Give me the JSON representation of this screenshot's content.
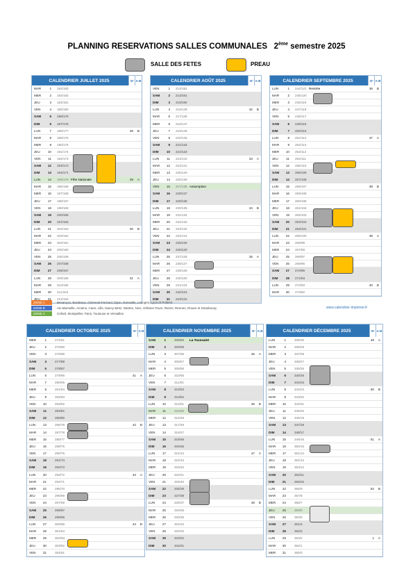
{
  "header": {
    "title": "PLANNING RESERVATIONS SALLES COMMUNALES",
    "semester_num": "2",
    "semester_sup": "ème",
    "semester_rest": "semestre 2025"
  },
  "legend": {
    "hall": "SALLE DES FETES",
    "preau": "PREAU"
  },
  "col_headers": {
    "week": "N°",
    "ab": "A-B"
  },
  "months": [
    {
      "title": "CALENDRIER JUILLET 2025",
      "rows": [
        [
          "MAR",
          1,
          "182/183"
        ],
        [
          "MER",
          2,
          "183/182"
        ],
        [
          "JEU",
          3,
          "184/181"
        ],
        [
          "VEN",
          4,
          "185/180"
        ],
        [
          "SAM",
          5,
          "186/179"
        ],
        [
          "DIM",
          6,
          "187/178"
        ],
        [
          "LUN",
          7,
          "188/177",
          "28",
          "B"
        ],
        [
          "MAR",
          8,
          "189/176"
        ],
        [
          "MER",
          9,
          "190/175"
        ],
        [
          "JEU",
          10,
          "191/174"
        ],
        [
          "VEN",
          11,
          "192/173"
        ],
        [
          "SAM",
          12,
          "193/172"
        ],
        [
          "DIM",
          13,
          "194/171"
        ],
        {
          "d": "LUN",
          "n": 14,
          "c": "195/170",
          "note": "Fête Nationale",
          "wk": "29",
          "ab": "A",
          "holiday": true
        },
        [
          "MAR",
          15,
          "196/169"
        ],
        [
          "MER",
          16,
          "197/168"
        ],
        [
          "JEU",
          17,
          "198/167"
        ],
        [
          "VEN",
          18,
          "199/166"
        ],
        [
          "SAM",
          19,
          "200/165"
        ],
        [
          "DIM",
          20,
          "201/164"
        ],
        [
          "LUN",
          21,
          "202/163",
          "30",
          "B"
        ],
        [
          "MAR",
          22,
          "203/162"
        ],
        [
          "MER",
          23,
          "204/161"
        ],
        [
          "JEU",
          24,
          "205/160"
        ],
        [
          "VEN",
          25,
          "206/159"
        ],
        [
          "SAM",
          26,
          "207/158"
        ],
        [
          "DIM",
          27,
          "208/157"
        ],
        [
          "LUN",
          28,
          "209/156",
          "31",
          "A"
        ],
        [
          "MAR",
          29,
          "210/155"
        ],
        [
          "MER",
          30,
          "211/154"
        ],
        [
          "JEU",
          31,
          "212/153"
        ]
      ]
    },
    {
      "title": "CALENDRIER AOÛT 2025",
      "rows": [
        [
          "VEN",
          1,
          "213/152"
        ],
        [
          "SAM",
          2,
          "214/151"
        ],
        [
          "DIM",
          3,
          "215/150"
        ],
        [
          "LUN",
          4,
          "216/149",
          "32",
          "B"
        ],
        [
          "MAR",
          5,
          "217/148"
        ],
        [
          "MER",
          6,
          "218/147"
        ],
        [
          "JEU",
          7,
          "219/146"
        ],
        [
          "VEN",
          8,
          "220/145"
        ],
        [
          "SAM",
          9,
          "221/144"
        ],
        [
          "DIM",
          10,
          "222/143"
        ],
        [
          "LUN",
          11,
          "223/142",
          "33",
          "A"
        ],
        [
          "MAR",
          12,
          "224/141"
        ],
        [
          "MER",
          13,
          "225/140"
        ],
        [
          "JEU",
          14,
          "226/139"
        ],
        {
          "d": "VEN",
          "n": 15,
          "c": "227/138",
          "note": "Assomption",
          "holiday": true
        },
        [
          "SAM",
          16,
          "228/137"
        ],
        [
          "DIM",
          17,
          "229/136"
        ],
        [
          "LUN",
          18,
          "230/135",
          "34",
          "B"
        ],
        [
          "MAR",
          19,
          "231/134"
        ],
        [
          "MER",
          20,
          "232/133"
        ],
        [
          "JEU",
          21,
          "233/132"
        ],
        [
          "VEN",
          22,
          "234/131"
        ],
        [
          "SAM",
          23,
          "235/130"
        ],
        [
          "DIM",
          24,
          "236/129"
        ],
        [
          "LUN",
          25,
          "237/128",
          "35",
          "A"
        ],
        [
          "MAR",
          26,
          "238/127"
        ],
        [
          "MER",
          27,
          "239/126"
        ],
        [
          "JEU",
          28,
          "240/125"
        ],
        [
          "VEN",
          29,
          "241/124"
        ],
        [
          "SAM",
          30,
          "242/123"
        ],
        [
          "DIM",
          31,
          "243/122"
        ]
      ]
    },
    {
      "title": "CALENDRIER SEPTEMBRE 2025",
      "rows": [
        {
          "d": "LUN",
          "n": 1,
          "c": "244/121",
          "note": "Rentrée",
          "wk": "36",
          "ab": "B"
        },
        [
          "MAR",
          2,
          "245/120"
        ],
        [
          "MER",
          3,
          "246/119"
        ],
        [
          "JEU",
          4,
          "247/118"
        ],
        [
          "VEN",
          5,
          "248/117"
        ],
        [
          "SAM",
          6,
          "249/116"
        ],
        [
          "DIM",
          7,
          "250/115"
        ],
        [
          "LUN",
          8,
          "251/114",
          "37",
          "A"
        ],
        [
          "MAR",
          9,
          "252/113"
        ],
        [
          "MER",
          10,
          "253/112"
        ],
        [
          "JEU",
          11,
          "254/111"
        ],
        [
          "VEN",
          12,
          "255/110"
        ],
        [
          "SAM",
          13,
          "256/109"
        ],
        [
          "DIM",
          14,
          "257/108"
        ],
        [
          "LUN",
          15,
          "258/107",
          "38",
          "B"
        ],
        [
          "MAR",
          16,
          "259/106"
        ],
        [
          "MER",
          17,
          "260/105"
        ],
        [
          "JEU",
          18,
          "261/104"
        ],
        [
          "VEN",
          19,
          "262/103"
        ],
        [
          "SAM",
          20,
          "263/102"
        ],
        [
          "DIM",
          21,
          "264/101"
        ],
        [
          "LUN",
          22,
          "265/100",
          "39",
          "A"
        ],
        [
          "MAR",
          23,
          "266/99"
        ],
        [
          "MER",
          24,
          "267/98"
        ],
        [
          "JEU",
          25,
          "268/97"
        ],
        [
          "VEN",
          26,
          "269/96"
        ],
        [
          "SAM",
          27,
          "270/95"
        ],
        [
          "DIM",
          28,
          "271/94"
        ],
        [
          "LUN",
          29,
          "272/93",
          "40",
          "B"
        ],
        [
          "MAR",
          30,
          "273/92"
        ]
      ]
    },
    {
      "title": "CALENDRIER OCTOBRE 2025",
      "rows": [
        [
          "MER",
          1,
          "274/91"
        ],
        [
          "JEU",
          2,
          "275/90"
        ],
        [
          "VEN",
          3,
          "276/89"
        ],
        [
          "SAM",
          4,
          "277/88"
        ],
        [
          "DIM",
          5,
          "278/87"
        ],
        [
          "LUN",
          6,
          "279/86",
          "41",
          "A"
        ],
        [
          "MAR",
          7,
          "280/85"
        ],
        [
          "MER",
          8,
          "281/84"
        ],
        [
          "JEU",
          9,
          "282/83"
        ],
        [
          "VEN",
          10,
          "283/82"
        ],
        [
          "SAM",
          11,
          "284/81"
        ],
        [
          "DIM",
          12,
          "285/80"
        ],
        [
          "LUN",
          13,
          "286/79",
          "42",
          "B"
        ],
        [
          "MAR",
          14,
          "287/78"
        ],
        [
          "MER",
          15,
          "288/77"
        ],
        [
          "JEU",
          16,
          "289/76"
        ],
        [
          "VEN",
          17,
          "290/75"
        ],
        [
          "SAM",
          18,
          "291/74"
        ],
        [
          "DIM",
          19,
          "292/73"
        ],
        [
          "LUN",
          20,
          "293/72",
          "43",
          "A"
        ],
        [
          "MAR",
          21,
          "294/71"
        ],
        [
          "MER",
          22,
          "295/70"
        ],
        [
          "JEU",
          23,
          "296/69"
        ],
        [
          "VEN",
          24,
          "297/68"
        ],
        [
          "SAM",
          25,
          "298/67"
        ],
        [
          "DIM",
          26,
          "299/66"
        ],
        [
          "LUN",
          27,
          "300/65",
          "44",
          "B"
        ],
        [
          "MAR",
          28,
          "301/64"
        ],
        [
          "MER",
          29,
          "302/63"
        ],
        [
          "JEU",
          30,
          "303/62"
        ],
        [
          "VEN",
          31,
          "304/61"
        ]
      ]
    },
    {
      "title": "CALENDRIER NOVEMBRE 2025",
      "rows": [
        {
          "d": "SAM",
          "n": 1,
          "c": "305/60",
          "note": "La Toussaint",
          "holiday": true
        },
        [
          "DIM",
          2,
          "306/59"
        ],
        [
          "LUN",
          3,
          "307/58",
          "45",
          "A"
        ],
        [
          "MAR",
          4,
          "308/57"
        ],
        [
          "MER",
          5,
          "309/56"
        ],
        [
          "JEU",
          6,
          "310/55"
        ],
        [
          "VEN",
          7,
          "311/54"
        ],
        [
          "SAM",
          8,
          "312/53"
        ],
        [
          "DIM",
          9,
          "313/52"
        ],
        [
          "LUN",
          10,
          "314/51",
          "46",
          "B"
        ],
        {
          "d": "MAR",
          "n": 11,
          "c": "315/50",
          "note": "1918",
          "holiday": true
        },
        [
          "MER",
          12,
          "316/49"
        ],
        [
          "JEU",
          13,
          "317/48"
        ],
        [
          "VEN",
          14,
          "318/47"
        ],
        [
          "SAM",
          15,
          "319/46"
        ],
        [
          "DIM",
          16,
          "320/45"
        ],
        [
          "LUN",
          17,
          "321/44",
          "47",
          "A"
        ],
        [
          "MAR",
          18,
          "322/43"
        ],
        [
          "MER",
          19,
          "323/42"
        ],
        [
          "JEU",
          20,
          "324/41"
        ],
        [
          "VEN",
          21,
          "325/40"
        ],
        [
          "SAM",
          22,
          "326/39"
        ],
        [
          "DIM",
          23,
          "327/38"
        ],
        [
          "LUN",
          24,
          "328/37",
          "48",
          "B"
        ],
        [
          "MAR",
          25,
          "329/36"
        ],
        [
          "MER",
          26,
          "330/35"
        ],
        [
          "JEU",
          27,
          "331/34"
        ],
        [
          "VEN",
          28,
          "332/33"
        ],
        [
          "SAM",
          29,
          "333/32"
        ],
        [
          "DIM",
          30,
          "334/31"
        ]
      ]
    },
    {
      "title": "CALENDRIER DÉCEMBRE 2025",
      "rows": [
        [
          "LUN",
          1,
          "335/30",
          "49",
          "A"
        ],
        [
          "MAR",
          2,
          "336/29"
        ],
        [
          "MER",
          3,
          "337/28"
        ],
        [
          "JEU",
          4,
          "338/27"
        ],
        [
          "VEN",
          5,
          "339/26"
        ],
        [
          "SAM",
          6,
          "340/25"
        ],
        [
          "DIM",
          7,
          "341/24"
        ],
        [
          "LUN",
          8,
          "342/23",
          "50",
          "B"
        ],
        [
          "MAR",
          9,
          "343/22"
        ],
        [
          "MER",
          10,
          "344/21"
        ],
        [
          "JEU",
          11,
          "345/20"
        ],
        [
          "VEN",
          12,
          "346/19"
        ],
        [
          "SAM",
          13,
          "347/18"
        ],
        [
          "DIM",
          14,
          "348/17"
        ],
        [
          "LUN",
          15,
          "349/16",
          "51",
          "A"
        ],
        [
          "MAR",
          16,
          "350/15"
        ],
        [
          "MER",
          17,
          "351/14"
        ],
        [
          "JEU",
          18,
          "352/13"
        ],
        [
          "VEN",
          19,
          "353/12"
        ],
        [
          "SAM",
          20,
          "354/11"
        ],
        [
          "DIM",
          21,
          "355/10"
        ],
        [
          "LUN",
          22,
          "356/9",
          "52",
          "B"
        ],
        [
          "MAR",
          23,
          "357/8"
        ],
        [
          "MER",
          24,
          "358/7"
        ],
        {
          "d": "JEU",
          "n": 25,
          "c": "359/6",
          "note": "Noël",
          "holiday": true
        },
        [
          "VEN",
          26,
          "360/5"
        ],
        [
          "SAM",
          27,
          "361/4"
        ],
        [
          "DIM",
          28,
          "362/3"
        ],
        [
          "LUN",
          29,
          "363/2",
          "1",
          "A"
        ],
        [
          "MAR",
          30,
          "364/1"
        ],
        [
          "MER",
          31,
          "365/0"
        ]
      ]
    }
  ],
  "zones": [
    {
      "label": "ZONE A",
      "text": "Besançon, Bordeaux, Clermont-Ferrand, Dijon, Grenoble, Limoges, Lyon et Poitiers"
    },
    {
      "label": "ZONE B",
      "text": "Aix-Marseille, Amiens, Caen, Lille, Nancy-Metz, Nantes, Nice, Orléans-Tours, Reims, Rennes, Rouen et Strasbourg"
    },
    {
      "label": "ZONE C",
      "text": "Créteil, Montpellier, Paris, Toulouse et Versailles"
    }
  ],
  "website": "www.calendrier-imprimer.fr"
}
